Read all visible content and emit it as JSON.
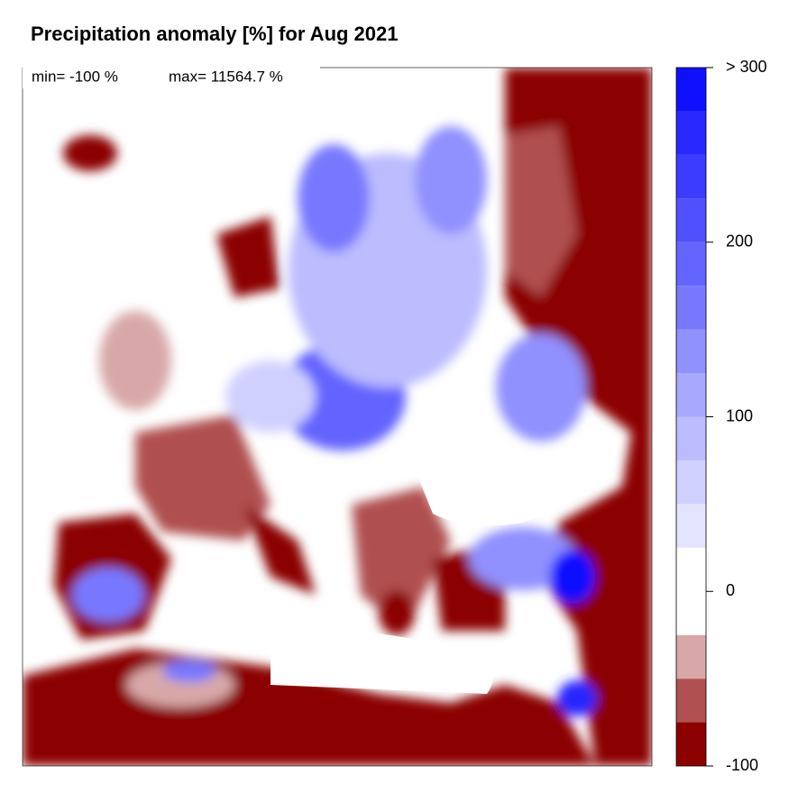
{
  "title": "Precipitation anomaly [%] for Aug 2021",
  "stats": {
    "min": "min= -100 %",
    "max": "max= 11564.7 %"
  },
  "colorbar": {
    "lim": [
      -100,
      300
    ],
    "levels": [
      -100,
      -75,
      -50,
      -25,
      25,
      50,
      75,
      100,
      125,
      150,
      175,
      200,
      225,
      250,
      275,
      300
    ],
    "colors": [
      "#8b0000",
      "#b05050",
      "#d8a8a8",
      "#ffffff",
      "#e4e4ff",
      "#d0d0ff",
      "#bcbcff",
      "#a8a8ff",
      "#9090ff",
      "#7878ff",
      "#6464ff",
      "#5050ff",
      "#3c3cff",
      "#2828ff",
      "#1010ff"
    ],
    "ticks": [
      -100,
      0,
      100,
      200,
      {
        "value": 300,
        "label": "> 300"
      }
    ]
  }
}
